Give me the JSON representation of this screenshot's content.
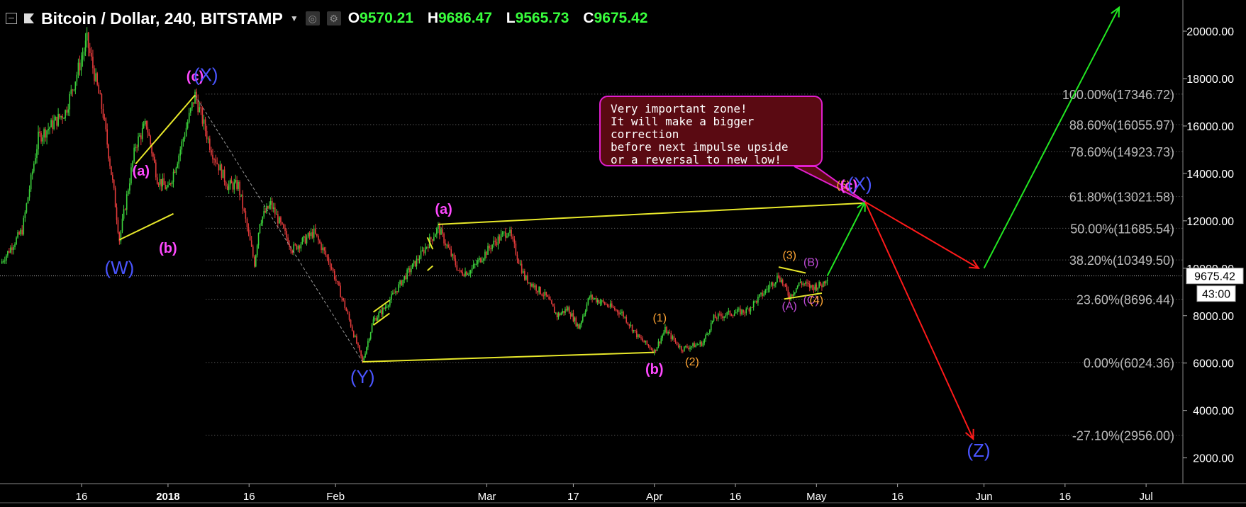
{
  "header": {
    "symbol_title": "Bitcoin / Dollar, 240, BITSTAMP",
    "ohlc": [
      {
        "label": "O",
        "value": "9570.21"
      },
      {
        "label": "H",
        "value": "9686.47"
      },
      {
        "label": "L",
        "value": "9565.73"
      },
      {
        "label": "C",
        "value": "9675.42"
      }
    ]
  },
  "colors": {
    "background": "#000000",
    "candle_up": "#3cd23c",
    "candle_down": "#e33b3b",
    "wave_magenta": "#ff49ff",
    "wave_blue": "#4a55ff",
    "wave_orange": "#ffa534",
    "trendline": "#e8e82a",
    "arrow_up": "#22e822",
    "arrow_down": "#ff1a1a",
    "callout_bg": "#5a0a12",
    "callout_border": "#e11fcf"
  },
  "chart_data": {
    "type": "candlestick",
    "symbol": "Bitcoin / Dollar",
    "interval": "240",
    "exchange": "BITSTAMP",
    "x_ticks": [
      "16",
      "2018",
      "16",
      "Feb",
      "Mar",
      "17",
      "Apr",
      "16",
      "May",
      "16",
      "Jun",
      "16",
      "Jul"
    ],
    "y_ticks": [
      "20000.00",
      "18000.00",
      "16000.00",
      "14000.00",
      "12000.00",
      "10000.00",
      "8000.00",
      "6000.00",
      "4000.00",
      "2000.00"
    ],
    "ylim": [
      1000,
      21000
    ],
    "price_tag": "9675.42",
    "countdown_tag": "43:00",
    "price_path": [
      {
        "x": "2017-12-01",
        "y": 10200
      },
      {
        "x": "2017-12-05",
        "y": 11600
      },
      {
        "x": "2017-12-08",
        "y": 15500
      },
      {
        "x": "2017-12-13",
        "y": 16600
      },
      {
        "x": "2017-12-17",
        "y": 19600
      },
      {
        "x": "2017-12-20",
        "y": 16500
      },
      {
        "x": "2017-12-22",
        "y": 13200
      },
      {
        "x": "2017-12-23",
        "y": 11200
      },
      {
        "x": "2017-12-26",
        "y": 15200
      },
      {
        "x": "2017-12-28",
        "y": 16100
      },
      {
        "x": "2017-12-30",
        "y": 13800
      },
      {
        "x": "2018-01-01",
        "y": 13300
      },
      {
        "x": "2018-01-03",
        "y": 14800
      },
      {
        "x": "2018-01-06",
        "y": 17300
      },
      {
        "x": "2018-01-09",
        "y": 15000
      },
      {
        "x": "2018-01-12",
        "y": 13500
      },
      {
        "x": "2018-01-14",
        "y": 13500
      },
      {
        "x": "2018-01-17",
        "y": 10200
      },
      {
        "x": "2018-01-18",
        "y": 12000
      },
      {
        "x": "2018-01-20",
        "y": 12700
      },
      {
        "x": "2018-01-24",
        "y": 10800
      },
      {
        "x": "2018-01-28",
        "y": 11500
      },
      {
        "x": "2018-01-31",
        "y": 10200
      },
      {
        "x": "2018-02-03",
        "y": 8200
      },
      {
        "x": "2018-02-06",
        "y": 6050
      },
      {
        "x": "2018-02-08",
        "y": 7800
      },
      {
        "x": "2018-02-10",
        "y": 8300
      },
      {
        "x": "2018-02-14",
        "y": 9700
      },
      {
        "x": "2018-02-16",
        "y": 10300
      },
      {
        "x": "2018-02-20",
        "y": 11700
      },
      {
        "x": "2018-02-24",
        "y": 9800
      },
      {
        "x": "2018-02-26",
        "y": 9900
      },
      {
        "x": "2018-03-02",
        "y": 11000
      },
      {
        "x": "2018-03-05",
        "y": 11600
      },
      {
        "x": "2018-03-08",
        "y": 9600
      },
      {
        "x": "2018-03-12",
        "y": 8800
      },
      {
        "x": "2018-03-14",
        "y": 8000
      },
      {
        "x": "2018-03-16",
        "y": 8300
      },
      {
        "x": "2018-03-18",
        "y": 7500
      },
      {
        "x": "2018-03-20",
        "y": 8800
      },
      {
        "x": "2018-03-22",
        "y": 8600
      },
      {
        "x": "2018-03-26",
        "y": 8100
      },
      {
        "x": "2018-03-29",
        "y": 7100
      },
      {
        "x": "2018-04-01",
        "y": 6500
      },
      {
        "x": "2018-04-03",
        "y": 7400
      },
      {
        "x": "2018-04-06",
        "y": 6600
      },
      {
        "x": "2018-04-10",
        "y": 6850
      },
      {
        "x": "2018-04-12",
        "y": 7900
      },
      {
        "x": "2018-04-15",
        "y": 8100
      },
      {
        "x": "2018-04-18",
        "y": 8200
      },
      {
        "x": "2018-04-21",
        "y": 8900
      },
      {
        "x": "2018-04-24",
        "y": 9700
      },
      {
        "x": "2018-04-26",
        "y": 8800
      },
      {
        "x": "2018-04-28",
        "y": 9400
      },
      {
        "x": "2018-04-30",
        "y": 9200
      },
      {
        "x": "2018-05-02",
        "y": 9300
      },
      {
        "x": "2018-05-03",
        "y": 9675
      }
    ],
    "fib_levels": [
      {
        "label": "100.00%(17346.72)",
        "value": 17346.72
      },
      {
        "label": "88.60%(16055.97)",
        "value": 16055.97
      },
      {
        "label": "78.60%(14923.73)",
        "value": 14923.73
      },
      {
        "label": "61.80%(13021.58)",
        "value": 13021.58
      },
      {
        "label": "50.00%(11685.54)",
        "value": 11685.54
      },
      {
        "label": "38.20%(10349.50)",
        "value": 10349.5
      },
      {
        "label": "23.60%(8696.44)",
        "value": 8696.44
      },
      {
        "label": "0.00%(6024.36)",
        "value": 6024.36
      },
      {
        "label": "-27.10%(2956.00)",
        "value": 2956.0
      }
    ],
    "wave_labels": [
      {
        "text": "(a)",
        "x": "2017-12-27",
        "y": 13900,
        "color": "magenta"
      },
      {
        "text": "(b)",
        "x": "2018-01-01",
        "y": 10650,
        "color": "magenta"
      },
      {
        "text": "(W)",
        "x": "2017-12-23",
        "y": 9750,
        "color": "blue"
      },
      {
        "text": "(c)",
        "x": "2018-01-06",
        "y": 17900,
        "color": "magenta"
      },
      {
        "text": "(X)",
        "x": "2018-01-08",
        "y": 17900,
        "color": "blue"
      },
      {
        "text": "(Y)",
        "x": "2018-02-06",
        "y": 5150,
        "color": "blue"
      },
      {
        "text": "(a)",
        "x": "2018-02-21",
        "y": 12300,
        "color": "magenta"
      },
      {
        "text": "(b)",
        "x": "2018-04-01",
        "y": 5550,
        "color": "magenta"
      },
      {
        "text": "(1)",
        "x": "2018-04-02",
        "y": 7750,
        "color": "orange"
      },
      {
        "text": "(2)",
        "x": "2018-04-08",
        "y": 5900,
        "color": "orange"
      },
      {
        "text": "(3)",
        "x": "2018-04-26",
        "y": 10400,
        "color": "orange"
      },
      {
        "text": "(A)",
        "x": "2018-04-26",
        "y": 8250,
        "color": "violet"
      },
      {
        "text": "(B)",
        "x": "2018-04-30",
        "y": 10100,
        "color": "violet"
      },
      {
        "text": "(C)",
        "x": "2018-04-30",
        "y": 8500,
        "color": "violet"
      },
      {
        "text": "(4)",
        "x": "2018-05-01",
        "y": 8500,
        "color": "orange"
      },
      {
        "text": "(5)",
        "x": "2018-05-06",
        "y": 13350,
        "color": "orange"
      },
      {
        "text": "(c)",
        "x": "2018-05-07",
        "y": 13300,
        "color": "magenta"
      },
      {
        "text": "(X)",
        "x": "2018-05-09",
        "y": 13300,
        "color": "blue"
      },
      {
        "text": "(Z)",
        "x": "2018-05-31",
        "y": 2050,
        "color": "blue"
      }
    ],
    "callout_lines": [
      "Very important zone!",
      "It will make a bigger correction",
      "before next impulse upside",
      "or a reversal to new low!"
    ]
  }
}
